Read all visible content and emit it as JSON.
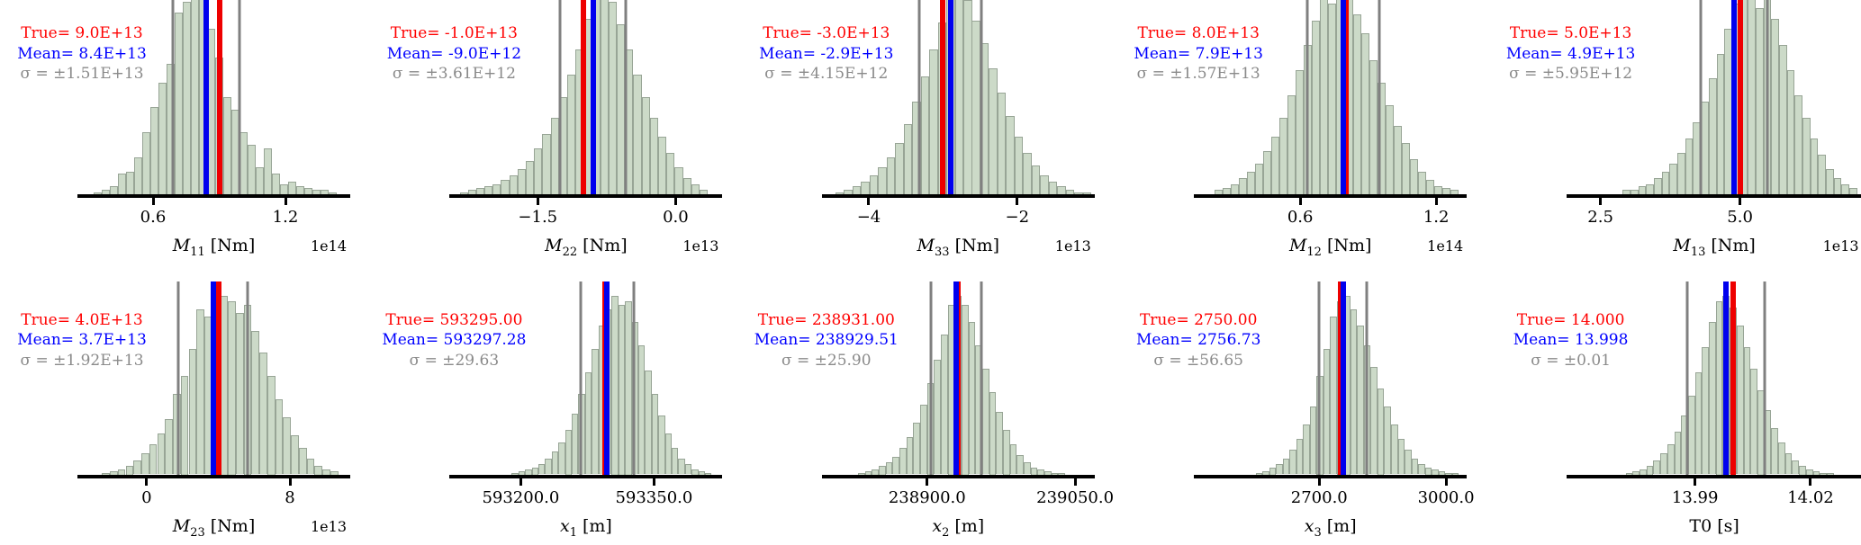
{
  "figure": {
    "description": "Grid of 10 posterior histograms (2 rows x 5 columns) for source parameters",
    "legend": {
      "true_label_color_meaning": "True value",
      "mean_label_color_meaning": "Posterior mean",
      "sigma_label_color_meaning": "One standard deviation bounds"
    }
  },
  "colors": {
    "background": "#ffffff",
    "true_line": "#ee0000",
    "mean_line": "#0000ee",
    "sigma_line": "#808080",
    "true_text": "#ff0000",
    "mean_text": "#0000ff",
    "sigma_text": "#8a8a8a",
    "hist_fill": "#ccdac8",
    "hist_edge": "#6e7a6e",
    "axis": "#000000"
  },
  "chart_data": [
    {
      "id": "M11",
      "type": "histogram",
      "xlabel": {
        "base": "M",
        "sub": "11",
        "unit": "[Nm]",
        "italic": true
      },
      "offset_label": "1e14",
      "annotations": {
        "true_text": "True= 9.0E+13",
        "mean_text": "Mean= 8.4E+13",
        "sigma_text": "σ = ±1.51E+13"
      },
      "true_value": 90000000000000.0,
      "mean_value": 84000000000000.0,
      "sigma_value": 15100000000000.0,
      "axis_range": [
        26500000000000.0,
        148600000000000.0
      ],
      "ticks": [
        {
          "value": 60000000000000.0,
          "label": "0.6"
        },
        {
          "value": 120000000000000.0,
          "label": "1.2"
        }
      ],
      "hist": {
        "start": 33000000000000.0,
        "bin_width": 3670000000000.0,
        "heights": [
          0.01,
          0.02,
          0.04,
          0.1,
          0.11,
          0.18,
          0.3,
          0.42,
          0.54,
          0.63,
          0.88,
          0.93,
          0.95,
          1.0,
          0.8,
          0.66,
          0.47,
          0.41,
          0.3,
          0.24,
          0.13,
          0.22,
          0.1,
          0.05,
          0.06,
          0.04,
          0.03,
          0.02,
          0.02,
          0.01
        ]
      }
    },
    {
      "id": "M22",
      "type": "histogram",
      "xlabel": {
        "base": "M",
        "sub": "22",
        "unit": "[Nm]",
        "italic": true
      },
      "offset_label": "1e13",
      "annotations": {
        "true_text": "True= -1.0E+13",
        "mean_text": "Mean= -9.0E+12",
        "sigma_text": "σ = ±3.61E+12"
      },
      "true_value": -10000000000000.0,
      "mean_value": -9000000000000.0,
      "sigma_value": 3610000000000.0,
      "axis_range": [
        -24400000000000.0,
        4900000000000.0
      ],
      "ticks": [
        {
          "value": -15000000000000.0,
          "label": "−1.5"
        },
        {
          "value": 0.0,
          "label": "0.0"
        }
      ],
      "hist": {
        "start": -23500000000000.0,
        "bin_width": 900000000000.0,
        "heights": [
          0.01,
          0.02,
          0.03,
          0.04,
          0.05,
          0.07,
          0.09,
          0.12,
          0.16,
          0.22,
          0.29,
          0.37,
          0.47,
          0.58,
          0.7,
          0.85,
          0.95,
          1.0,
          0.93,
          0.82,
          0.7,
          0.58,
          0.47,
          0.37,
          0.28,
          0.2,
          0.13,
          0.08,
          0.05,
          0.02
        ]
      }
    },
    {
      "id": "M33",
      "type": "histogram",
      "xlabel": {
        "base": "M",
        "sub": "33",
        "unit": "[Nm]",
        "italic": true
      },
      "offset_label": "1e13",
      "annotations": {
        "true_text": "True= -3.0E+13",
        "mean_text": "Mean= -2.9E+13",
        "sigma_text": "σ = ±4.15E+12"
      },
      "true_value": -30000000000000.0,
      "mean_value": -29000000000000.0,
      "sigma_value": 4150000000000.0,
      "axis_range": [
        -46100000000000.0,
        -9800000000000.0
      ],
      "ticks": [
        {
          "value": -40000000000000.0,
          "label": "−4"
        },
        {
          "value": -20000000000000.0,
          "label": "−2"
        }
      ],
      "hist": {
        "start": -44500000000000.0,
        "bin_width": 1150000000000.0,
        "heights": [
          0.01,
          0.02,
          0.04,
          0.06,
          0.09,
          0.13,
          0.18,
          0.25,
          0.34,
          0.45,
          0.57,
          0.7,
          0.83,
          0.95,
          1.0,
          0.94,
          0.84,
          0.73,
          0.61,
          0.49,
          0.38,
          0.28,
          0.2,
          0.14,
          0.09,
          0.06,
          0.04,
          0.02,
          0.01,
          0.01
        ]
      }
    },
    {
      "id": "M12",
      "type": "histogram",
      "xlabel": {
        "base": "M",
        "sub": "12",
        "unit": "[Nm]",
        "italic": true
      },
      "offset_label": "1e14",
      "annotations": {
        "true_text": "True= 8.0E+13",
        "mean_text": "Mean= 7.9E+13",
        "sigma_text": "σ = ±1.57E+13"
      },
      "true_value": 80000000000000.0,
      "mean_value": 79000000000000.0,
      "sigma_value": 15700000000000.0,
      "axis_range": [
        13900000000000.0,
        132700000000000.0
      ],
      "ticks": [
        {
          "value": 60000000000000.0,
          "label": "0.6"
        },
        {
          "value": 120000000000000.0,
          "label": "1.2"
        }
      ],
      "hist": {
        "start": 22000000000000.0,
        "bin_width": 3600000000000.0,
        "heights": [
          0.02,
          0.03,
          0.05,
          0.08,
          0.11,
          0.15,
          0.21,
          0.28,
          0.37,
          0.48,
          0.6,
          0.72,
          0.84,
          0.97,
          0.92,
          1.0,
          0.95,
          0.87,
          0.78,
          0.65,
          0.54,
          0.43,
          0.33,
          0.25,
          0.17,
          0.11,
          0.07,
          0.04,
          0.03,
          0.02
        ]
      }
    },
    {
      "id": "M13",
      "type": "histogram",
      "xlabel": {
        "base": "M",
        "sub": "13",
        "unit": "[Nm]",
        "italic": true
      },
      "offset_label": "1e13",
      "annotations": {
        "true_text": "True= 5.0E+13",
        "mean_text": "Mean= 4.9E+13",
        "sigma_text": "σ = ±5.95E+12"
      },
      "true_value": 50000000000000.0,
      "mean_value": 49000000000000.0,
      "sigma_value": 5950000000000.0,
      "axis_range": [
        19200000000000.0,
        71600000000000.0
      ],
      "ticks": [
        {
          "value": 25000000000000.0,
          "label": "2.5"
        },
        {
          "value": 50000000000000.0,
          "label": "5.0"
        }
      ],
      "hist": {
        "start": 29000000000000.0,
        "bin_width": 1400000000000.0,
        "heights": [
          0.02,
          0.02,
          0.04,
          0.05,
          0.08,
          0.11,
          0.15,
          0.2,
          0.27,
          0.35,
          0.45,
          0.56,
          0.68,
          0.8,
          0.92,
          0.97,
          1.0,
          0.9,
          0.97,
          0.85,
          0.72,
          0.6,
          0.48,
          0.37,
          0.27,
          0.19,
          0.12,
          0.08,
          0.05,
          0.03
        ]
      }
    },
    {
      "id": "M23",
      "type": "histogram",
      "xlabel": {
        "base": "M",
        "sub": "23",
        "unit": "[Nm]",
        "italic": true
      },
      "offset_label": "1e13",
      "annotations": {
        "true_text": "True= 4.0E+13",
        "mean_text": "Mean= 3.7E+13",
        "sigma_text": "σ = ±1.92E+13"
      },
      "true_value": 40000000000000.0,
      "mean_value": 37000000000000.0,
      "sigma_value": 19200000000000.0,
      "axis_range": [
        -37700000000000.0,
        112700000000000.0
      ],
      "ticks": [
        {
          "value": 0.0,
          "label": "0"
        },
        {
          "value": 80000000000000.0,
          "label": "8"
        }
      ],
      "hist": {
        "start": -25000000000000.0,
        "bin_width": 4400000000000.0,
        "heights": [
          0.01,
          0.02,
          0.03,
          0.05,
          0.08,
          0.12,
          0.17,
          0.23,
          0.31,
          0.45,
          0.55,
          0.7,
          0.92,
          0.88,
          0.95,
          1.0,
          0.97,
          0.9,
          0.95,
          0.8,
          0.68,
          0.55,
          0.42,
          0.32,
          0.22,
          0.15,
          0.09,
          0.05,
          0.03,
          0.02
        ]
      }
    },
    {
      "id": "x1",
      "type": "histogram",
      "xlabel": {
        "base": "x",
        "sub": "1",
        "unit": "[m]",
        "italic": true
      },
      "offset_label": "",
      "annotations": {
        "true_text": "True= 593295.00",
        "mean_text": "Mean= 593297.28",
        "sigma_text": "σ = ±29.63"
      },
      "true_value": 593295.0,
      "mean_value": 593297.28,
      "sigma_value": 29.63,
      "axis_range": [
        593122,
        593425
      ],
      "ticks": [
        {
          "value": 593200.0,
          "label": "593200.0"
        },
        {
          "value": 593350.0,
          "label": "593350.0"
        }
      ],
      "hist": {
        "start": 593190,
        "bin_width": 7.5,
        "heights": [
          0.01,
          0.02,
          0.03,
          0.04,
          0.06,
          0.09,
          0.13,
          0.18,
          0.25,
          0.34,
          0.45,
          0.57,
          0.7,
          0.83,
          0.92,
          1.0,
          0.95,
          0.97,
          0.85,
          0.72,
          0.58,
          0.45,
          0.33,
          0.23,
          0.15,
          0.09,
          0.06,
          0.03,
          0.02,
          0.01
        ]
      }
    },
    {
      "id": "x2",
      "type": "histogram",
      "xlabel": {
        "base": "x",
        "sub": "2",
        "unit": "[m]",
        "italic": true
      },
      "offset_label": "",
      "annotations": {
        "true_text": "True= 238931.00",
        "mean_text": "Mean= 238929.51",
        "sigma_text": "σ = ±25.90"
      },
      "true_value": 238931.0,
      "mean_value": 238929.51,
      "sigma_value": 25.9,
      "axis_range": [
        238795,
        239068
      ],
      "ticks": [
        {
          "value": 238900.0,
          "label": "238900.0"
        },
        {
          "value": 239050.0,
          "label": "239050.0"
        }
      ],
      "hist": {
        "start": 238830,
        "bin_width": 7,
        "heights": [
          0.01,
          0.02,
          0.03,
          0.05,
          0.07,
          0.1,
          0.15,
          0.21,
          0.29,
          0.39,
          0.51,
          0.64,
          0.78,
          0.95,
          1.0,
          0.95,
          0.85,
          0.72,
          0.59,
          0.46,
          0.35,
          0.25,
          0.17,
          0.11,
          0.07,
          0.04,
          0.03,
          0.02,
          0.01,
          0.01
        ]
      }
    },
    {
      "id": "x3",
      "type": "histogram",
      "xlabel": {
        "base": "x",
        "sub": "3",
        "unit": "[m]",
        "italic": true
      },
      "offset_label": "",
      "annotations": {
        "true_text": "True= 2750.00",
        "mean_text": "Mean= 2756.73",
        "sigma_text": "σ = ±56.65"
      },
      "true_value": 2750.0,
      "mean_value": 2756.73,
      "sigma_value": 56.65,
      "axis_range": [
        2408,
        3045
      ],
      "ticks": [
        {
          "value": 2700.0,
          "label": "2700.0"
        },
        {
          "value": 3000.0,
          "label": "3000.0"
        }
      ],
      "hist": {
        "start": 2550,
        "bin_width": 16,
        "heights": [
          0.01,
          0.02,
          0.04,
          0.06,
          0.09,
          0.14,
          0.2,
          0.28,
          0.38,
          0.55,
          0.7,
          0.88,
          0.97,
          1.0,
          0.92,
          0.83,
          0.72,
          0.6,
          0.48,
          0.38,
          0.28,
          0.2,
          0.14,
          0.09,
          0.06,
          0.04,
          0.03,
          0.02,
          0.01,
          0.01
        ]
      }
    },
    {
      "id": "T0",
      "type": "histogram",
      "xlabel": {
        "base": "T0",
        "sub": "",
        "unit": "[s]",
        "italic": false
      },
      "offset_label": "",
      "annotations": {
        "true_text": "True= 14.000",
        "mean_text": "Mean= 13.998",
        "sigma_text": "σ = ±0.01"
      },
      "true_value": 14.0,
      "mean_value": 13.998,
      "sigma_value": 0.01,
      "axis_range": [
        13.957,
        14.033
      ],
      "ticks": [
        {
          "value": 13.99,
          "label": "13.99"
        },
        {
          "value": 14.02,
          "label": "14.02"
        }
      ],
      "hist": {
        "start": 13.972,
        "bin_width": 0.0018,
        "heights": [
          0.01,
          0.02,
          0.03,
          0.05,
          0.08,
          0.12,
          0.17,
          0.24,
          0.33,
          0.44,
          0.57,
          0.71,
          0.85,
          0.97,
          1.0,
          0.93,
          0.83,
          0.71,
          0.59,
          0.47,
          0.36,
          0.26,
          0.18,
          0.12,
          0.08,
          0.05,
          0.03,
          0.02,
          0.01,
          0.01
        ]
      }
    }
  ]
}
